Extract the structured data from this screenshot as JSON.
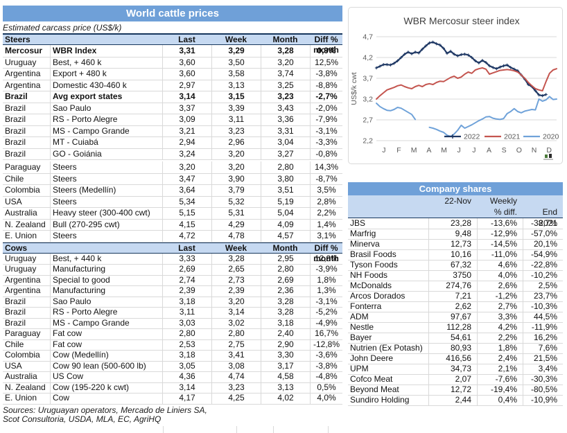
{
  "colors": {
    "title_bar_blue": "#6fa0d8",
    "band_blue": "#c6d9f1",
    "dark_border": "#16365c",
    "grid_gray": "#d9d9d9",
    "axis_text_gray": "#595959",
    "series_2022": "#1f3864",
    "series_2021": "#c4554f",
    "series_2020": "#6fa2d9"
  },
  "left_table": {
    "title": "World cattle prices",
    "subtitle": "Estimated carcass price (US$/k)",
    "columns": [
      "Last",
      "Week",
      "Month",
      "Diff % month"
    ],
    "sections": [
      {
        "label": "Steers",
        "row_class": "s-row",
        "rows": [
          {
            "country": "Mercosur",
            "desc": "WBR Index",
            "last": "3,31",
            "week": "3,29",
            "month": "3,28",
            "diff": "0,9%",
            "bold": true
          },
          {
            "country": "Uruguay",
            "desc": "Best, + 460 k",
            "last": "3,60",
            "week": "3,50",
            "month": "3,20",
            "diff": "12,5%"
          },
          {
            "country": "Argentina",
            "desc": "Export + 480 k",
            "last": "3,60",
            "week": "3,58",
            "month": "3,74",
            "diff": "-3,8%"
          },
          {
            "country": "Argentina",
            "desc": "Domestic 430-460 k",
            "last": "2,97",
            "week": "3,13",
            "month": "3,25",
            "diff": "-8,8%"
          },
          {
            "country": "Brazil",
            "desc": "Avg export states",
            "last": "3,14",
            "week": "3,15",
            "month": "3,23",
            "diff": "-2,7%",
            "bold": true
          },
          {
            "country": "Brazil",
            "desc": "Sao Paulo",
            "last": "3,37",
            "week": "3,39",
            "month": "3,43",
            "diff": "-2,0%"
          },
          {
            "country": "Brazil",
            "desc": "RS - Porto Alegre",
            "last": "3,09",
            "week": "3,11",
            "month": "3,36",
            "diff": "-7,9%"
          },
          {
            "country": "Brazil",
            "desc": "MS - Campo Grande",
            "last": "3,21",
            "week": "3,23",
            "month": "3,31",
            "diff": "-3,1%"
          },
          {
            "country": "Brazil",
            "desc": "MT - Cuiabá",
            "last": "2,94",
            "week": "2,96",
            "month": "3,04",
            "diff": "-3,3%"
          },
          {
            "country": "Brazil",
            "desc": "GO - Goiánia",
            "last": "3,24",
            "week": "3,20",
            "month": "3,27",
            "diff": "-0,8%"
          },
          {
            "country": "Paraguay",
            "desc": "Steers",
            "last": "3,20",
            "week": "3,20",
            "month": "2,80",
            "diff": "14,3%",
            "gap": true
          },
          {
            "country": "Chile",
            "desc": "Steers",
            "last": "3,47",
            "week": "3,90",
            "month": "3,80",
            "diff": "-8,7%"
          },
          {
            "country": "Colombia",
            "desc": "Steers (Medellín)",
            "last": "3,64",
            "week": "3,79",
            "month": "3,51",
            "diff": "3,5%"
          },
          {
            "country": "USA",
            "desc": "Steers",
            "last": "5,34",
            "week": "5,32",
            "month": "5,19",
            "diff": "2,8%"
          },
          {
            "country": "Australia",
            "desc": "Heavy steer (300-400 cwt)",
            "last": "5,15",
            "week": "5,31",
            "month": "5,04",
            "diff": "2,2%"
          },
          {
            "country": "N. Zealand",
            "desc": "Bull (270-295 cwt)",
            "last": "4,15",
            "week": "4,29",
            "month": "4,09",
            "diff": "1,4%"
          },
          {
            "country": "E. Union",
            "desc": "Steers",
            "last": "4,72",
            "week": "4,78",
            "month": "4,57",
            "diff": "3,1%"
          }
        ]
      },
      {
        "label": "Cows",
        "row_class": "c-row",
        "rows": [
          {
            "country": "Uruguay",
            "desc": "Best, + 440 k",
            "last": "3,33",
            "week": "3,28",
            "month": "2,95",
            "diff": "12,9%"
          },
          {
            "country": "Uruguay",
            "desc": "Manufacturing",
            "last": "2,69",
            "week": "2,65",
            "month": "2,80",
            "diff": "-3,9%"
          },
          {
            "country": "Argentina",
            "desc": "Special to good",
            "last": "2,74",
            "week": "2,73",
            "month": "2,69",
            "diff": "1,8%"
          },
          {
            "country": "Argentina",
            "desc": "Manufacturing",
            "last": "2,39",
            "week": "2,39",
            "month": "2,36",
            "diff": "1,3%"
          },
          {
            "country": "Brazil",
            "desc": "Sao Paulo",
            "last": "3,18",
            "week": "3,20",
            "month": "3,28",
            "diff": "-3,1%"
          },
          {
            "country": "Brazil",
            "desc": "RS - Porto Alegre",
            "last": "3,11",
            "week": "3,14",
            "month": "3,28",
            "diff": "-5,2%"
          },
          {
            "country": "Brazil",
            "desc": "MS - Campo Grande",
            "last": "3,03",
            "week": "3,02",
            "month": "3,18",
            "diff": "-4,9%"
          },
          {
            "country": "Paraguay",
            "desc": "Fat cow",
            "last": "2,80",
            "week": "2,80",
            "month": "2,40",
            "diff": "16,7%"
          },
          {
            "country": "Chile",
            "desc": "Fat cow",
            "last": "2,53",
            "week": "2,75",
            "month": "2,90",
            "diff": "-12,8%"
          },
          {
            "country": "Colombia",
            "desc": "Cow (Medellín)",
            "last": "3,18",
            "week": "3,41",
            "month": "3,30",
            "diff": "-3,6%"
          },
          {
            "country": "USA",
            "desc": "Cow 90 lean (500-600 lb)",
            "last": "3,05",
            "week": "3,08",
            "month": "3,17",
            "diff": "-3,8%"
          },
          {
            "country": "Australia",
            "desc": "US Cow",
            "last": "4,36",
            "week": "4,74",
            "month": "4,58",
            "diff": "-4,8%"
          },
          {
            "country": "N. Zealand",
            "desc": "Cow (195-220 k cwt)",
            "last": "3,14",
            "week": "3,23",
            "month": "3,13",
            "diff": "0,5%"
          },
          {
            "country": "E. Union",
            "desc": "Cow",
            "last": "4,17",
            "week": "4,25",
            "month": "4,02",
            "diff": "4,0%"
          }
        ]
      }
    ],
    "sources_line1": "Sources: Uruguayan operators, Mercado de Liniers SA,",
    "sources_line2": "Scot Consultoria, USDA, MLA, EC, AgriHQ"
  },
  "chart_data": {
    "type": "line",
    "title": "WBR Mercosur steer index",
    "ylabel": "US$/k cwt",
    "ylim": [
      2.2,
      4.7
    ],
    "yticks": [
      4.7,
      4.2,
      3.7,
      3.2,
      2.7,
      2.2
    ],
    "ytick_labels": [
      "4,7",
      "4,2",
      "3,7",
      "3,2",
      "2,7",
      "2,2"
    ],
    "x_months": [
      "J",
      "F",
      "M",
      "A",
      "M",
      "J",
      "J",
      "A",
      "S",
      "O",
      "N",
      "D"
    ],
    "x_unit": "week-of-year (52 weeks)",
    "grid": true,
    "legend_position": "inside-bottom-right",
    "series": [
      {
        "name": "2022",
        "color": "#1f3864",
        "marker": "plus",
        "values": [
          3.95,
          3.99,
          4.03,
          4.03,
          4.02,
          4.06,
          4.12,
          4.2,
          4.28,
          4.33,
          4.29,
          4.33,
          4.31,
          4.4,
          4.48,
          4.55,
          4.57,
          4.53,
          4.5,
          4.42,
          4.3,
          4.35,
          4.28,
          4.24,
          4.27,
          4.28,
          4.26,
          4.2,
          4.12,
          4.07,
          4.13,
          4.08,
          4.0,
          3.96,
          3.93,
          3.97,
          4.0,
          4.02,
          3.96,
          3.92,
          3.88,
          3.78,
          3.68,
          3.55,
          3.5,
          3.4,
          3.3,
          3.28,
          3.31
        ]
      },
      {
        "name": "2021",
        "color": "#c4554f",
        "marker": "none",
        "values": [
          3.2,
          3.28,
          3.35,
          3.42,
          3.45,
          3.48,
          3.52,
          3.54,
          3.5,
          3.47,
          3.45,
          3.5,
          3.53,
          3.5,
          3.55,
          3.57,
          3.55,
          3.6,
          3.63,
          3.62,
          3.67,
          3.72,
          3.75,
          3.7,
          3.73,
          3.8,
          3.85,
          3.82,
          3.9,
          3.93,
          3.95,
          3.92,
          3.8,
          3.83,
          3.86,
          3.89,
          3.9,
          3.91,
          3.9,
          3.88,
          3.85,
          3.78,
          3.7,
          3.6,
          3.52,
          3.45,
          3.42,
          3.4,
          3.62,
          3.82,
          3.9,
          3.93
        ]
      },
      {
        "name": "2020",
        "color": "#6fa2d9",
        "marker": "none",
        "values": [
          3.1,
          3.02,
          2.97,
          2.93,
          2.92,
          2.95,
          3.0,
          2.98,
          2.93,
          2.88,
          2.83,
          2.71,
          null,
          null,
          null,
          2.52,
          2.5,
          2.47,
          2.43,
          2.4,
          2.33,
          2.3,
          2.36,
          2.45,
          2.57,
          2.5,
          2.54,
          2.58,
          2.63,
          2.68,
          2.72,
          2.77,
          2.78,
          2.74,
          2.72,
          2.71,
          2.73,
          2.85,
          2.9,
          2.97,
          2.9,
          2.87,
          2.91,
          2.93,
          2.95,
          2.94,
          3.2,
          3.15,
          3.18,
          3.26,
          3.19,
          3.2
        ]
      }
    ]
  },
  "company_table": {
    "title": "Company shares",
    "header": {
      "date": "22-Nov",
      "weekly_line1": "Weekly",
      "weekly_line2": "% diff.",
      "end": "End 2021"
    },
    "rows": [
      {
        "name": "JBS",
        "price": "23,28",
        "weekly": "-13,6%",
        "end": "-38,7%"
      },
      {
        "name": "Marfrig",
        "price": "9,48",
        "weekly": "-12,9%",
        "end": "-57,0%"
      },
      {
        "name": "Minerva",
        "price": "12,73",
        "weekly": "-14,5%",
        "end": "20,1%"
      },
      {
        "name": "Brasil Foods",
        "price": "10,16",
        "weekly": "-11,0%",
        "end": "-54,9%"
      },
      {
        "name": "Tyson Foods",
        "price": "67,32",
        "weekly": "4,6%",
        "end": "-22,8%"
      },
      {
        "name": "NH Foods",
        "price": "3750",
        "weekly": "4,0%",
        "end": "-10,2%"
      },
      {
        "name": "McDonalds",
        "price": "274,76",
        "weekly": "2,6%",
        "end": "2,5%"
      },
      {
        "name": "Arcos Dorados",
        "price": "7,21",
        "weekly": "-1,2%",
        "end": "23,7%"
      },
      {
        "name": "Fonterra",
        "price": "2,62",
        "weekly": "2,7%",
        "end": "-10,3%"
      },
      {
        "name": "ADM",
        "price": "97,67",
        "weekly": "3,3%",
        "end": "44,5%"
      },
      {
        "name": "Nestle",
        "price": "112,28",
        "weekly": "4,2%",
        "end": "-11,9%"
      },
      {
        "name": "Bayer",
        "price": "54,61",
        "weekly": "2,2%",
        "end": "16,2%"
      },
      {
        "name": "Nutrien (Ex Potash)",
        "price": "80,93",
        "weekly": "1,8%",
        "end": "7,6%"
      },
      {
        "name": "John Deere",
        "price": "416,56",
        "weekly": "2,4%",
        "end": "21,5%"
      },
      {
        "name": "UPM",
        "price": "34,73",
        "weekly": "2,1%",
        "end": "3,4%"
      },
      {
        "name": "Cofco Meat",
        "price": "2,07",
        "weekly": "-7,6%",
        "end": "-30,3%"
      },
      {
        "name": "Beyond Meat",
        "price": "12,72",
        "weekly": "-19,4%",
        "end": "-80,5%"
      },
      {
        "name": "Sundiro Holding",
        "price": "2,44",
        "weekly": "0,4%",
        "end": "-10,9%"
      }
    ]
  }
}
